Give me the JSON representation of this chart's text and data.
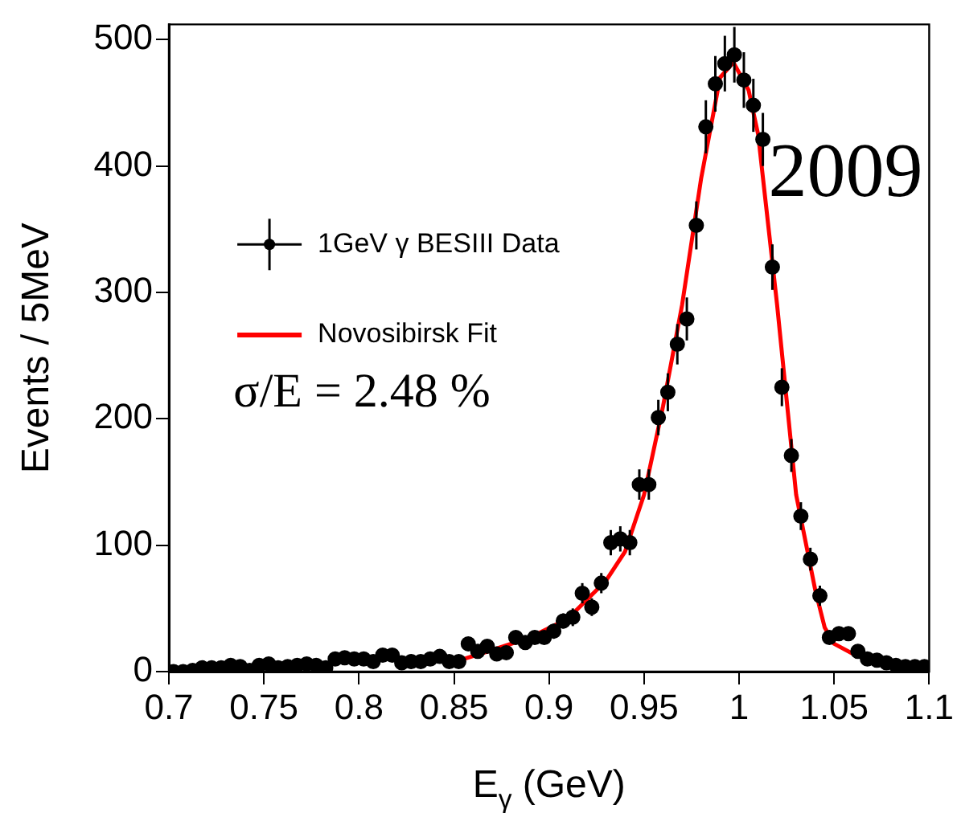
{
  "chart_data": {
    "type": "scatter",
    "xlabel": "E$_{γ}$ (GeV)",
    "ylabel": "Events / 5MeV",
    "xlim": [
      0.7,
      1.1
    ],
    "xticks": [
      0.7,
      0.75,
      0.8,
      0.85,
      0.9,
      0.95,
      1,
      1.05,
      1.1
    ],
    "ylim": [
      0,
      512
    ],
    "yticks": [
      0,
      100,
      200,
      300,
      400,
      500
    ],
    "grid": false,
    "legend": "top left",
    "annotations": [
      "σ/E = 2.48 %",
      "2009"
    ],
    "series": [
      {
        "name": "1GeV γ BESIII Data",
        "color": "#000000",
        "marker": "circle",
        "x": [
          0.7025,
          0.7075,
          0.7125,
          0.7175,
          0.7225,
          0.7275,
          0.7325,
          0.7375,
          0.7425,
          0.7475,
          0.7525,
          0.7575,
          0.7625,
          0.7675,
          0.7725,
          0.7775,
          0.7825,
          0.7875,
          0.7925,
          0.7975,
          0.8025,
          0.8075,
          0.8125,
          0.8175,
          0.8225,
          0.8275,
          0.8325,
          0.8375,
          0.8425,
          0.8475,
          0.8525,
          0.8575,
          0.8625,
          0.8675,
          0.8725,
          0.8775,
          0.8825,
          0.8875,
          0.8925,
          0.8975,
          0.9025,
          0.9075,
          0.9125,
          0.9175,
          0.9225,
          0.9275,
          0.9325,
          0.9375,
          0.9425,
          0.9475,
          0.9525,
          0.9575,
          0.9625,
          0.9675,
          0.9725,
          0.9775,
          0.9825,
          0.9875,
          0.9925,
          0.9975,
          1.0025,
          1.0075,
          1.0125,
          1.0175,
          1.0225,
          1.0275,
          1.0325,
          1.0375,
          1.0425,
          1.0475,
          1.0525,
          1.0575,
          1.0625,
          1.0675,
          1.0725,
          1.0775,
          1.0825,
          1.0875,
          1.0925,
          1.0975
        ],
        "values": [
          0,
          0,
          1,
          3,
          3,
          3,
          5,
          4,
          1,
          5,
          6,
          3,
          4,
          5,
          6,
          5,
          3,
          10,
          11,
          10,
          10,
          8,
          13,
          13,
          7,
          8,
          8,
          10,
          12,
          8,
          8,
          22,
          16,
          20,
          14,
          15,
          27,
          23,
          27,
          27,
          32,
          40,
          43,
          62,
          51,
          70,
          102,
          105,
          102,
          148,
          148,
          201,
          221,
          259,
          279,
          353,
          431,
          465,
          481,
          488,
          468,
          448,
          421,
          320,
          225,
          171,
          123,
          89,
          60,
          27,
          30,
          30,
          16,
          10,
          9,
          7,
          5,
          4,
          4,
          4
        ],
        "errors": [
          null,
          null,
          1,
          2,
          2,
          2,
          2,
          2,
          1,
          2,
          2,
          2,
          2,
          2,
          2,
          2,
          2,
          3,
          3,
          3,
          3,
          3,
          4,
          4,
          3,
          3,
          3,
          3,
          3,
          3,
          3,
          5,
          4,
          4,
          4,
          4,
          5,
          5,
          5,
          5,
          6,
          6,
          7,
          8,
          7,
          8,
          10,
          10,
          10,
          12,
          12,
          14,
          15,
          16,
          17,
          19,
          21,
          22,
          22,
          22,
          22,
          21,
          21,
          18,
          15,
          13,
          11,
          9,
          8,
          5,
          5,
          5,
          4,
          3,
          3,
          3,
          2,
          2,
          2,
          2
        ]
      },
      {
        "name": "Novosibirsk Fit",
        "type": "line",
        "color": "#ff0000",
        "marker": "none",
        "line_style": "solid",
        "x": [
          0.855,
          0.87,
          0.89,
          0.91,
          0.93,
          0.94,
          0.95,
          0.96,
          0.97,
          0.98,
          0.99,
          0.997,
          1.005,
          1.01,
          1.02,
          1.03,
          1.04,
          1.045,
          1.05,
          1.06,
          1.07
        ],
        "values": [
          10,
          17,
          27,
          42,
          72,
          95,
          140,
          210,
          290,
          390,
          470,
          482,
          460,
          425,
          290,
          140,
          65,
          35,
          22,
          14,
          9
        ]
      }
    ]
  }
}
